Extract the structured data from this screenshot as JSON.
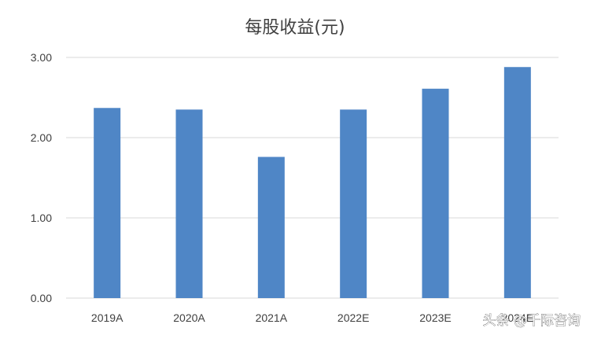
{
  "chart_data": {
    "type": "bar",
    "title": "每股收益(元)",
    "categories": [
      "2019A",
      "2020A",
      "2021A",
      "2022E",
      "2023E",
      "2024E"
    ],
    "values": [
      2.37,
      2.35,
      1.76,
      2.35,
      2.61,
      2.88
    ],
    "ylim": [
      0,
      3
    ],
    "yticks": [
      "0.00",
      "1.00",
      "2.00",
      "3.00"
    ],
    "grid": true,
    "bar_color": "#4f86c6"
  },
  "watermark": "头条 @千际咨询"
}
